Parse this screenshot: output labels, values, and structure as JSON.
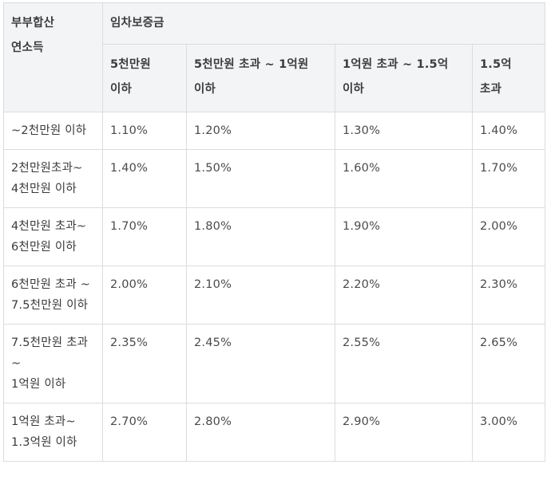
{
  "table": {
    "corner_header": "부부합산\n연소득",
    "group_header": "임차보증금",
    "columns": [
      "5천만원\n이하",
      "5천만원 초과 ~ 1억원\n이하",
      "1억원 초과 ~ 1.5억\n이하",
      "1.5억\n초과"
    ],
    "rows": [
      {
        "label": "~2천만원 이하",
        "values": [
          "1.10%",
          "1.20%",
          "1.30%",
          "1.40%"
        ]
      },
      {
        "label": "2천만원초과~\n4천만원 이하",
        "values": [
          "1.40%",
          "1.50%",
          "1.60%",
          "1.70%"
        ]
      },
      {
        "label": "4천만원 초과~\n6천만원 이하",
        "values": [
          "1.70%",
          "1.80%",
          "1.90%",
          "2.00%"
        ]
      },
      {
        "label": "6천만원 초과 ~\n7.5천만원 이하",
        "values": [
          "2.00%",
          "2.10%",
          "2.20%",
          "2.30%"
        ]
      },
      {
        "label": "7.5천만원 초과\n~\n1억원 이하",
        "values": [
          "2.35%",
          "2.45%",
          "2.55%",
          "2.65%"
        ]
      },
      {
        "label": "1억원 초과~\n1.3억원 이하",
        "values": [
          "2.70%",
          "2.80%",
          "2.90%",
          "3.00%"
        ]
      }
    ]
  }
}
